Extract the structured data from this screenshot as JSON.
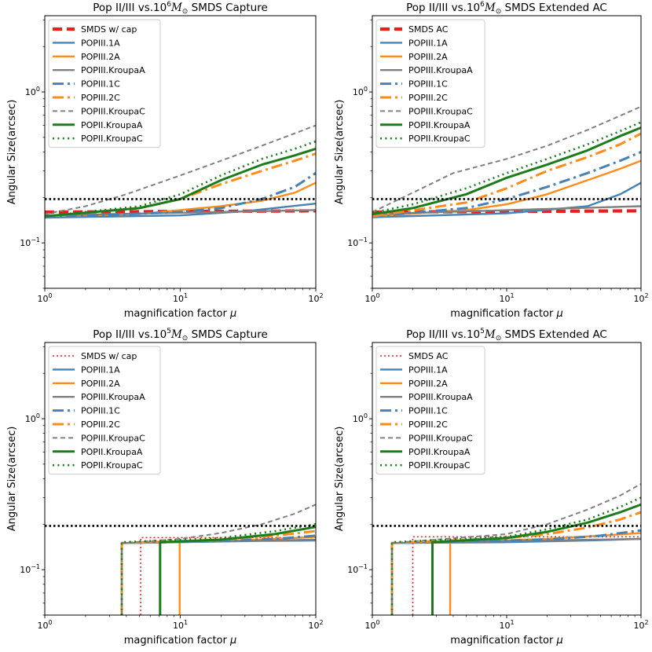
{
  "chart_data": [
    {
      "type": "line",
      "title_prefix": "Pop II/III vs.10",
      "title_exp": "6",
      "title_m": "M",
      "title_sub": "⊙",
      "title_suffix": " SMDS Capture",
      "xlabel": "magnification factor",
      "xlabel_sym": "μ",
      "ylabel": "Angular Size(arcsec)",
      "xscale": "log",
      "yscale": "log",
      "xlim": [
        1,
        100
      ],
      "ylim": [
        0.05,
        3.2
      ],
      "xticks": [
        {
          "v": 1,
          "label": "10",
          "exp": "0"
        },
        {
          "v": 10,
          "label": "10",
          "exp": "1"
        },
        {
          "v": 100,
          "label": "10",
          "exp": "2"
        }
      ],
      "yticks": [
        {
          "v": 0.1,
          "label": "10",
          "exp": "−1"
        },
        {
          "v": 1,
          "label": "10",
          "exp": "0"
        }
      ],
      "hline": 0.195,
      "legend_position": "top-left",
      "series": [
        {
          "name": "SMDS w/ cap",
          "color": "#ee1c1c",
          "style": "dashed-thick",
          "x": [
            1,
            100
          ],
          "y": [
            0.16,
            0.163
          ]
        },
        {
          "name": "POPIII.1A",
          "color": "#4682b4",
          "style": "solid",
          "x": [
            1,
            10,
            30,
            100
          ],
          "y": [
            0.147,
            0.152,
            0.162,
            0.182
          ]
        },
        {
          "name": "POPIII.2A",
          "color": "#ff8c1a",
          "style": "solid",
          "x": [
            1,
            5,
            10,
            20,
            40,
            70,
            100
          ],
          "y": [
            0.15,
            0.155,
            0.165,
            0.175,
            0.19,
            0.215,
            0.25
          ]
        },
        {
          "name": "POPIII.KroupaA",
          "color": "#808080",
          "style": "solid",
          "x": [
            1,
            100
          ],
          "y": [
            0.152,
            0.165
          ]
        },
        {
          "name": "POPIII.1C",
          "color": "#4682b4",
          "style": "dashdot",
          "x": [
            1,
            10,
            20,
            40,
            70,
            100
          ],
          "y": [
            0.148,
            0.16,
            0.17,
            0.195,
            0.235,
            0.29
          ]
        },
        {
          "name": "POPIII.2C",
          "color": "#ff8c1a",
          "style": "dashdot",
          "x": [
            1,
            5,
            10,
            20,
            40,
            70,
            100
          ],
          "y": [
            0.15,
            0.17,
            0.195,
            0.245,
            0.3,
            0.35,
            0.39
          ]
        },
        {
          "name": "POPIII.KroupaC",
          "color": "#808080",
          "style": "dashed",
          "x": [
            1,
            2,
            4,
            10,
            20,
            40,
            100
          ],
          "y": [
            0.155,
            0.175,
            0.21,
            0.28,
            0.35,
            0.44,
            0.6
          ]
        },
        {
          "name": "POPII.KroupaA",
          "color": "#1c7c1c",
          "style": "solid-thick",
          "x": [
            1,
            5,
            10,
            20,
            40,
            70,
            100
          ],
          "y": [
            0.15,
            0.17,
            0.195,
            0.26,
            0.33,
            0.38,
            0.42
          ]
        },
        {
          "name": "POPII.KroupaC",
          "color": "#1c7c1c",
          "style": "dotted",
          "x": [
            1,
            5,
            10,
            20,
            40,
            70,
            100
          ],
          "y": [
            0.15,
            0.175,
            0.21,
            0.28,
            0.36,
            0.42,
            0.47
          ]
        }
      ]
    },
    {
      "type": "line",
      "title_prefix": "Pop II/III vs.10",
      "title_exp": "6",
      "title_m": "M",
      "title_sub": "⊙",
      "title_suffix": " SMDS Extended AC",
      "xlabel": "magnification factor",
      "xlabel_sym": "μ",
      "ylabel": "Angular Size(arcsec)",
      "xscale": "log",
      "yscale": "log",
      "xlim": [
        1,
        100
      ],
      "ylim": [
        0.05,
        3.2
      ],
      "xticks": [
        {
          "v": 1,
          "label": "10",
          "exp": "0"
        },
        {
          "v": 10,
          "label": "10",
          "exp": "1"
        },
        {
          "v": 100,
          "label": "10",
          "exp": "2"
        }
      ],
      "yticks": [
        {
          "v": 0.1,
          "label": "10",
          "exp": "−1"
        },
        {
          "v": 1,
          "label": "10",
          "exp": "0"
        }
      ],
      "hline": 0.195,
      "legend_position": "top-left",
      "series": [
        {
          "name": "SMDS AC",
          "color": "#ee1c1c",
          "style": "dashed-thick",
          "x": [
            1,
            100
          ],
          "y": [
            0.16,
            0.163
          ]
        },
        {
          "name": "POPIII.1A",
          "color": "#4682b4",
          "style": "solid",
          "x": [
            1,
            10,
            40,
            70,
            100
          ],
          "y": [
            0.148,
            0.157,
            0.175,
            0.21,
            0.25
          ]
        },
        {
          "name": "POPIII.2A",
          "color": "#ff8c1a",
          "style": "solid",
          "x": [
            1,
            5,
            10,
            20,
            40,
            70,
            100
          ],
          "y": [
            0.15,
            0.165,
            0.18,
            0.21,
            0.26,
            0.31,
            0.35
          ]
        },
        {
          "name": "POPIII.KroupaA",
          "color": "#808080",
          "style": "solid",
          "x": [
            1,
            100
          ],
          "y": [
            0.155,
            0.175
          ]
        },
        {
          "name": "POPIII.1C",
          "color": "#4682b4",
          "style": "dashdot",
          "x": [
            1,
            5,
            10,
            20,
            40,
            70,
            100
          ],
          "y": [
            0.15,
            0.17,
            0.195,
            0.235,
            0.29,
            0.35,
            0.4
          ]
        },
        {
          "name": "POPIII.2C",
          "color": "#ff8c1a",
          "style": "dashdot",
          "x": [
            1,
            5,
            10,
            20,
            40,
            70,
            100
          ],
          "y": [
            0.15,
            0.185,
            0.23,
            0.3,
            0.37,
            0.45,
            0.53
          ]
        },
        {
          "name": "POPIII.KroupaC",
          "color": "#808080",
          "style": "dashed",
          "x": [
            1,
            2,
            4,
            10,
            20,
            40,
            100
          ],
          "y": [
            0.16,
            0.215,
            0.29,
            0.36,
            0.44,
            0.56,
            0.8
          ]
        },
        {
          "name": "POPII.KroupaA",
          "color": "#1c7c1c",
          "style": "solid-thick",
          "x": [
            1,
            2,
            5,
            10,
            20,
            40,
            70,
            100
          ],
          "y": [
            0.155,
            0.17,
            0.21,
            0.27,
            0.33,
            0.41,
            0.51,
            0.58
          ]
        },
        {
          "name": "POPII.KroupaC",
          "color": "#1c7c1c",
          "style": "dotted",
          "x": [
            1,
            2,
            5,
            10,
            20,
            40,
            70,
            100
          ],
          "y": [
            0.158,
            0.18,
            0.23,
            0.29,
            0.36,
            0.45,
            0.55,
            0.63
          ]
        }
      ]
    },
    {
      "type": "line",
      "title_prefix": "Pop II/III vs.10",
      "title_exp": "5",
      "title_m": "M",
      "title_sub": "⊙",
      "title_suffix": " SMDS Capture",
      "xlabel": "magnification factor",
      "xlabel_sym": "μ",
      "ylabel": "Angular Size(arcsec)",
      "xscale": "log",
      "yscale": "log",
      "xlim": [
        1,
        100
      ],
      "ylim": [
        0.05,
        3.2
      ],
      "xticks": [
        {
          "v": 1,
          "label": "10",
          "exp": "0"
        },
        {
          "v": 10,
          "label": "10",
          "exp": "1"
        },
        {
          "v": 100,
          "label": "10",
          "exp": "2"
        }
      ],
      "yticks": [
        {
          "v": 0.1,
          "label": "10",
          "exp": "−1"
        },
        {
          "v": 1,
          "label": "10",
          "exp": "0"
        }
      ],
      "hline": 0.195,
      "legend_position": "top-left",
      "series": [
        {
          "name": "SMDS w/ cap",
          "color": "#ee1c1c",
          "style": "dotted-thin",
          "x": [
            5.1,
            5.1,
            100
          ],
          "y": [
            0.05,
            0.163,
            0.163
          ]
        },
        {
          "name": "POPIII.1A",
          "color": "#4682b4",
          "style": "solid",
          "x": [
            3.7,
            3.7,
            10,
            40,
            100
          ],
          "y": [
            0.05,
            0.15,
            0.152,
            0.155,
            0.156
          ]
        },
        {
          "name": "POPIII.2A",
          "color": "#ff8c1a",
          "style": "solid",
          "x": [
            9.9,
            9.9,
            40,
            100
          ],
          "y": [
            0.05,
            0.152,
            0.158,
            0.165
          ]
        },
        {
          "name": "POPIII.KroupaA",
          "color": "#808080",
          "style": "solid",
          "x": [
            3.7,
            3.7,
            100
          ],
          "y": [
            0.05,
            0.15,
            0.158
          ]
        },
        {
          "name": "POPIII.1C",
          "color": "#4682b4",
          "style": "dashdot",
          "x": [
            3.7,
            3.7,
            20,
            50,
            100
          ],
          "y": [
            0.05,
            0.15,
            0.155,
            0.16,
            0.168
          ]
        },
        {
          "name": "POPIII.2C",
          "color": "#ff8c1a",
          "style": "dashdot",
          "x": [
            3.7,
            3.7,
            20,
            50,
            100
          ],
          "y": [
            0.05,
            0.15,
            0.158,
            0.168,
            0.18
          ]
        },
        {
          "name": "POPIII.KroupaC",
          "color": "#808080",
          "style": "dashed",
          "x": [
            3.7,
            3.7,
            10,
            20,
            40,
            70,
            100
          ],
          "y": [
            0.05,
            0.15,
            0.16,
            0.175,
            0.2,
            0.235,
            0.27
          ]
        },
        {
          "name": "POPII.KroupaA",
          "color": "#1c7c1c",
          "style": "solid-thick",
          "x": [
            7.1,
            7.1,
            20,
            50,
            100
          ],
          "y": [
            0.05,
            0.152,
            0.158,
            0.172,
            0.192
          ]
        },
        {
          "name": "POPII.KroupaC",
          "color": "#1c7c1c",
          "style": "dotted",
          "x": [
            3.7,
            3.7,
            20,
            50,
            100
          ],
          "y": [
            0.05,
            0.152,
            0.162,
            0.18,
            0.2
          ]
        }
      ]
    },
    {
      "type": "line",
      "title_prefix": "Pop II/III vs.10",
      "title_exp": "5",
      "title_m": "M",
      "title_sub": "⊙",
      "title_suffix": " SMDS Extended AC",
      "xlabel": "magnification factor",
      "xlabel_sym": "μ",
      "ylabel": "Angular Size(arcsec)",
      "xscale": "log",
      "yscale": "log",
      "xlim": [
        1,
        100
      ],
      "ylim": [
        0.05,
        3.2
      ],
      "xticks": [
        {
          "v": 1,
          "label": "10",
          "exp": "0"
        },
        {
          "v": 10,
          "label": "10",
          "exp": "1"
        },
        {
          "v": 100,
          "label": "10",
          "exp": "2"
        }
      ],
      "yticks": [
        {
          "v": 0.1,
          "label": "10",
          "exp": "−1"
        },
        {
          "v": 1,
          "label": "10",
          "exp": "0"
        }
      ],
      "hline": 0.195,
      "legend_position": "top-left",
      "series": [
        {
          "name": "SMDS AC",
          "color": "#ee1c1c",
          "style": "dotted-thin",
          "x": [
            2.0,
            2.0,
            100
          ],
          "y": [
            0.05,
            0.165,
            0.165
          ]
        },
        {
          "name": "POPIII.1A",
          "color": "#4682b4",
          "style": "solid",
          "x": [
            1.4,
            1.4,
            10,
            40,
            100
          ],
          "y": [
            0.05,
            0.15,
            0.152,
            0.156,
            0.16
          ]
        },
        {
          "name": "POPIII.2A",
          "color": "#ff8c1a",
          "style": "solid",
          "x": [
            3.8,
            3.8,
            20,
            50,
            100
          ],
          "y": [
            0.05,
            0.152,
            0.16,
            0.168,
            0.175
          ]
        },
        {
          "name": "POPIII.KroupaA",
          "color": "#808080",
          "style": "solid",
          "x": [
            1.4,
            1.4,
            100
          ],
          "y": [
            0.05,
            0.15,
            0.16
          ]
        },
        {
          "name": "POPIII.1C",
          "color": "#4682b4",
          "style": "dashdot",
          "x": [
            1.4,
            1.4,
            20,
            50,
            100
          ],
          "y": [
            0.05,
            0.15,
            0.158,
            0.168,
            0.182
          ]
        },
        {
          "name": "POPIII.2C",
          "color": "#ff8c1a",
          "style": "dashdot",
          "x": [
            1.4,
            1.4,
            10,
            20,
            40,
            70,
            100
          ],
          "y": [
            0.05,
            0.15,
            0.162,
            0.172,
            0.19,
            0.215,
            0.24
          ]
        },
        {
          "name": "POPIII.KroupaC",
          "color": "#808080",
          "style": "dashed",
          "x": [
            1.4,
            1.4,
            10,
            20,
            40,
            70,
            100
          ],
          "y": [
            0.05,
            0.15,
            0.172,
            0.2,
            0.25,
            0.31,
            0.37
          ]
        },
        {
          "name": "POPII.KroupaA",
          "color": "#1c7c1c",
          "style": "solid-thick",
          "x": [
            2.8,
            2.8,
            10,
            20,
            40,
            70,
            100
          ],
          "y": [
            0.05,
            0.152,
            0.162,
            0.178,
            0.205,
            0.24,
            0.27
          ]
        },
        {
          "name": "POPII.KroupaC",
          "color": "#1c7c1c",
          "style": "dotted",
          "x": [
            1.4,
            1.4,
            10,
            20,
            40,
            70,
            100
          ],
          "y": [
            0.05,
            0.152,
            0.165,
            0.185,
            0.215,
            0.26,
            0.3
          ]
        }
      ]
    }
  ]
}
